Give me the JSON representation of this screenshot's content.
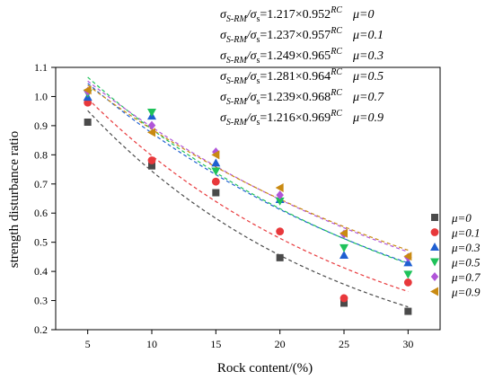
{
  "chart_data": {
    "type": "scatter",
    "xlabel": "Rock content/(%)",
    "ylabel": "strength disturbance ratio",
    "xlim": [
      2.5,
      32.5
    ],
    "ylim": [
      0.2,
      1.1
    ],
    "x_ticks": [
      "5",
      "10",
      "15",
      "20",
      "25",
      "30"
    ],
    "y_ticks": [
      "0.2",
      "0.3",
      "0.4",
      "0.5",
      "0.6",
      "0.7",
      "0.8",
      "0.9",
      "1.0",
      "1.1"
    ],
    "x": [
      5,
      10,
      15,
      20,
      25,
      30
    ],
    "legend_position": "right",
    "grid": false,
    "series": [
      {
        "name": "μ=0",
        "label": "μ=0",
        "marker": "square",
        "color": "#4a4a4a",
        "values": [
          0.912,
          0.762,
          0.67,
          0.447,
          0.291,
          0.263
        ],
        "fit": {
          "a": 1.217,
          "b": 0.952
        }
      },
      {
        "name": "μ=0.1",
        "label": "μ=0.1",
        "marker": "circle",
        "color": "#e8383b",
        "values": [
          0.979,
          0.781,
          0.708,
          0.537,
          0.308,
          0.362
        ],
        "fit": {
          "a": 1.237,
          "b": 0.957
        }
      },
      {
        "name": "μ=0.3",
        "label": "μ=0.3",
        "marker": "triangle-up",
        "color": "#1f5fd1",
        "values": [
          0.998,
          0.933,
          0.772,
          0.647,
          0.456,
          0.43
        ],
        "fit": {
          "a": 1.249,
          "b": 0.965
        }
      },
      {
        "name": "μ=0.5",
        "label": "μ=0.5",
        "marker": "triangle-down",
        "color": "#1fc25a",
        "values": [
          1.011,
          0.946,
          0.744,
          0.641,
          0.481,
          0.39
        ],
        "fit": {
          "a": 1.281,
          "b": 0.964
        }
      },
      {
        "name": "μ=0.7",
        "label": "μ=0.7",
        "marker": "diamond",
        "color": "#b055d8",
        "values": [
          1.018,
          0.901,
          0.81,
          0.662,
          0.528,
          0.448
        ],
        "fit": {
          "a": 1.239,
          "b": 0.968
        }
      },
      {
        "name": "μ=0.9",
        "label": "μ=0.9",
        "marker": "triangle-left",
        "color": "#c98a12",
        "values": [
          1.022,
          0.877,
          0.8,
          0.687,
          0.531,
          0.452
        ],
        "fit": {
          "a": 1.216,
          "b": 0.969
        }
      }
    ],
    "annotations": [
      {
        "sigma": "σ",
        "sub1": "S-RM",
        "slash": "/",
        "sigma2": "σ",
        "sub2": "s",
        "eq": "=1.217×0.952",
        "sup": "RC",
        "mu": "μ=0"
      },
      {
        "sigma": "σ",
        "sub1": "S-RM",
        "slash": "/",
        "sigma2": "σ",
        "sub2": "s",
        "eq": "=1.237×0.957",
        "sup": "RC",
        "mu": "μ=0.1"
      },
      {
        "sigma": "σ",
        "sub1": "S-RM",
        "slash": "/",
        "sigma2": "σ",
        "sub2": "s",
        "eq": "=1.249×0.965",
        "sup": "RC",
        "mu": "μ=0.3"
      },
      {
        "sigma": "σ",
        "sub1": "S-RM",
        "slash": "/",
        "sigma2": "σ",
        "sub2": "s",
        "eq": "=1.281×0.964",
        "sup": "RC",
        "mu": "μ=0.5"
      },
      {
        "sigma": "σ",
        "sub1": "S-RM",
        "slash": "/",
        "sigma2": "σ",
        "sub2": "s",
        "eq": "=1.239×0.968",
        "sup": "RC",
        "mu": "μ=0.7"
      },
      {
        "sigma": "σ",
        "sub1": "S-RM",
        "slash": "/",
        "sigma2": "σ",
        "sub2": "s",
        "eq": "=1.216×0.969",
        "sup": "RC",
        "mu": "μ=0.9"
      }
    ]
  }
}
